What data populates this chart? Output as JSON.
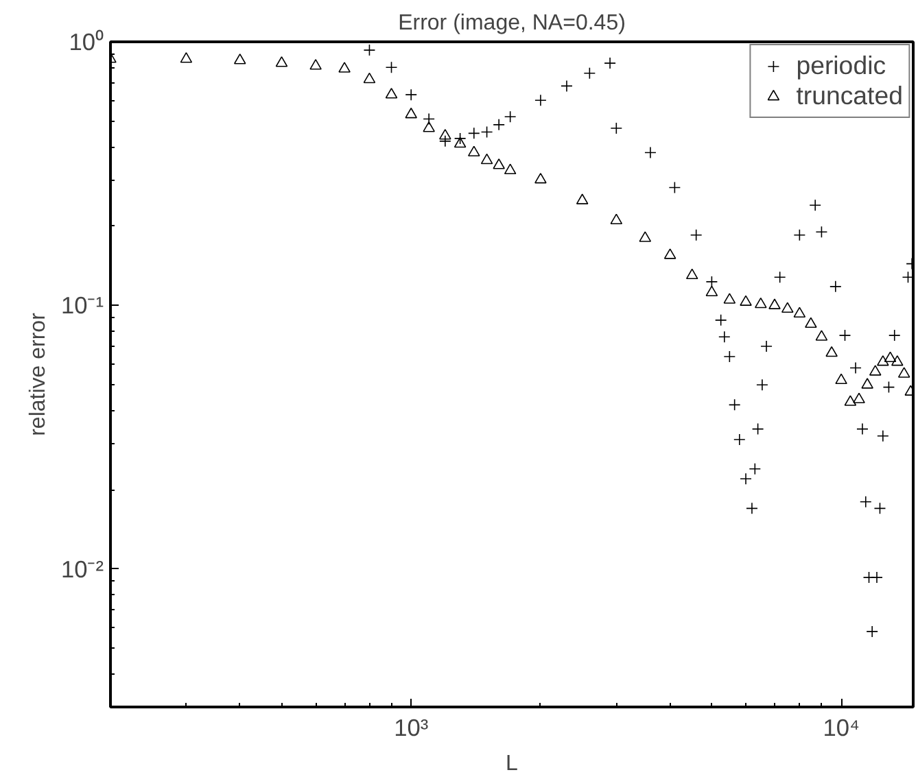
{
  "chart_data": {
    "type": "scatter",
    "title": "Error (image, NA=0.45)",
    "xlabel": "L",
    "ylabel": "relative error",
    "log": "xy",
    "grid": false,
    "legend": "top right",
    "xlim": [
      200,
      14700
    ],
    "ylim": [
      0.003,
      1
    ],
    "xticks": [
      {
        "value": 1000,
        "label": "10³"
      },
      {
        "value": 10000,
        "label": "10⁴"
      }
    ],
    "yticks": [
      {
        "value": 0.01,
        "label": "10⁻²"
      },
      {
        "value": 0.1,
        "label": "10⁻¹"
      },
      {
        "value": 1,
        "label": "10⁰"
      }
    ],
    "series": [
      {
        "name": "periodic",
        "color": "#000000",
        "marker": "cross",
        "x": [
          800,
          900,
          1000,
          1100,
          1200,
          1300,
          1400,
          1500,
          1600,
          1700,
          2000,
          2300,
          2600,
          2900,
          3000,
          3600,
          4100,
          4600,
          5000,
          5250,
          5350,
          5500,
          5650,
          5800,
          6000,
          6200,
          6300,
          6400,
          6550,
          6700,
          7200,
          8000,
          8700,
          9000,
          9700,
          10200,
          10800,
          11200,
          11400,
          11600,
          11800,
          12100,
          12300,
          12500,
          12900,
          13300,
          14300,
          14600
        ],
        "values": [
          0.93,
          0.8,
          0.63,
          0.51,
          0.42,
          0.43,
          0.45,
          0.455,
          0.485,
          0.52,
          0.6,
          0.68,
          0.76,
          0.83,
          0.47,
          0.38,
          0.28,
          0.185,
          0.123,
          0.088,
          0.076,
          0.064,
          0.042,
          0.031,
          0.022,
          0.017,
          0.024,
          0.034,
          0.05,
          0.07,
          0.128,
          0.185,
          0.24,
          0.19,
          0.118,
          0.077,
          0.058,
          0.034,
          0.018,
          0.0093,
          0.0058,
          0.0093,
          0.017,
          0.032,
          0.049,
          0.077,
          0.128,
          0.144
        ]
      },
      {
        "name": "truncated",
        "color": "#000000",
        "marker": "triangle",
        "x": [
          200,
          300,
          400,
          500,
          600,
          700,
          800,
          900,
          1000,
          1100,
          1200,
          1300,
          1400,
          1500,
          1600,
          1700,
          2000,
          2500,
          3000,
          3500,
          4000,
          4500,
          5000,
          5500,
          6000,
          6500,
          7000,
          7500,
          8000,
          8500,
          9000,
          9500,
          10000,
          10500,
          11000,
          11500,
          12000,
          12500,
          13000,
          13500,
          14000,
          14500
        ],
        "values": [
          0.86,
          0.86,
          0.85,
          0.83,
          0.81,
          0.79,
          0.72,
          0.63,
          0.53,
          0.47,
          0.44,
          0.41,
          0.38,
          0.355,
          0.34,
          0.325,
          0.3,
          0.25,
          0.21,
          0.18,
          0.155,
          0.13,
          0.112,
          0.105,
          0.103,
          0.101,
          0.1,
          0.097,
          0.093,
          0.085,
          0.076,
          0.066,
          0.052,
          0.043,
          0.044,
          0.05,
          0.056,
          0.061,
          0.063,
          0.061,
          0.055,
          0.047
        ]
      }
    ]
  }
}
